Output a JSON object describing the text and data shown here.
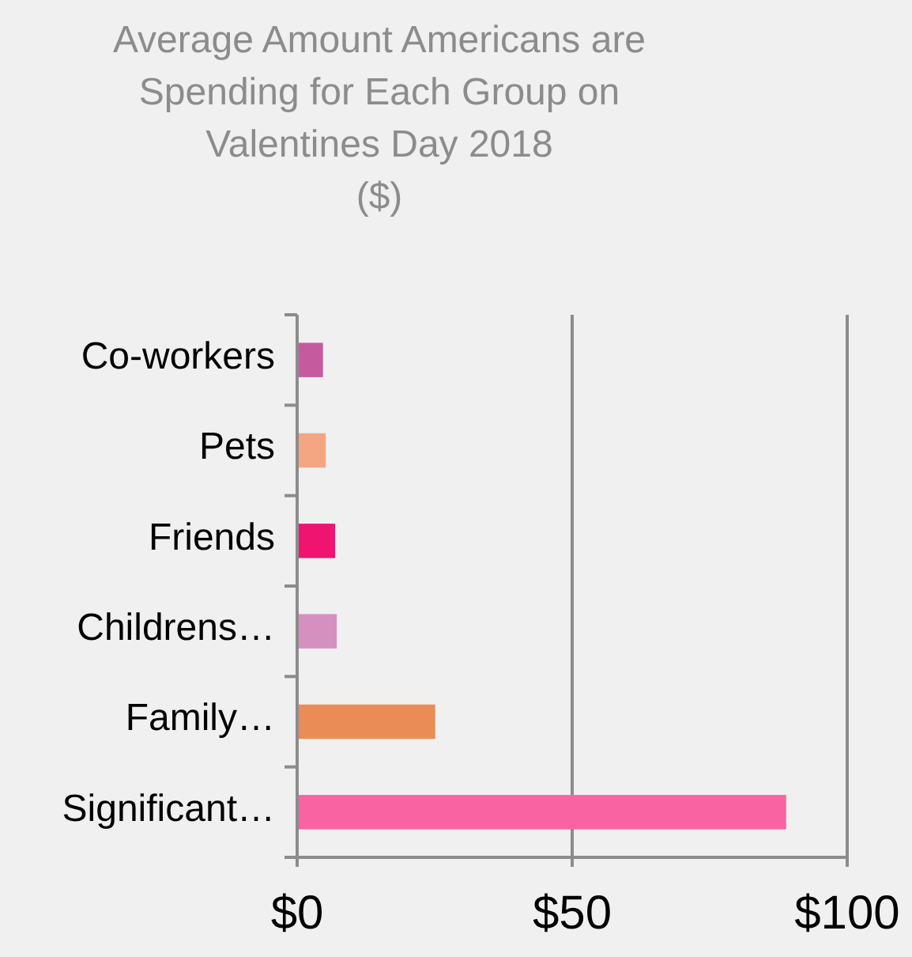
{
  "chart_data": {
    "type": "bar",
    "orientation": "horizontal",
    "title": "Average Amount Americans are Spending for Each Group on Valentines Day 2018",
    "subtitle": "($)",
    "categories": [
      "Co-workers",
      "Pets",
      "Friends",
      "Childrens…",
      "Family…",
      "Significant…"
    ],
    "values": [
      4.7,
      5.2,
      6.9,
      7.2,
      25.1,
      88.9
    ],
    "colors": [
      "#c55a9f",
      "#f4a582",
      "#ef1470",
      "#d690c0",
      "#ea8c55",
      "#f963a2"
    ],
    "xlim": [
      0,
      100
    ],
    "xticks": [
      {
        "value": 0,
        "label": "$0"
      },
      {
        "value": 50,
        "label": "$50"
      },
      {
        "value": 100,
        "label": "$100"
      }
    ],
    "grid": "x"
  }
}
